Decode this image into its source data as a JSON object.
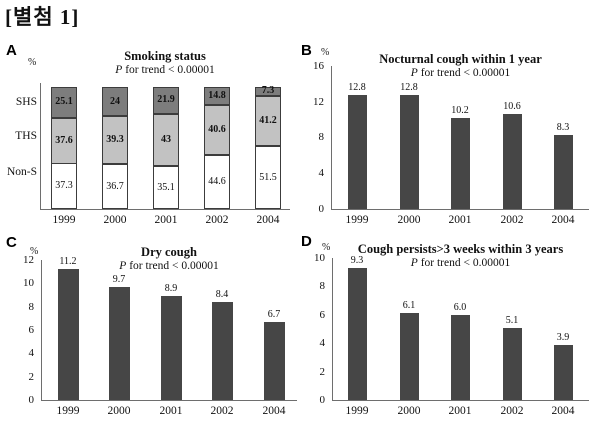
{
  "header": {
    "title": "[별첨 1]"
  },
  "panels": [
    {
      "letter": "A",
      "subtitle_p": "P",
      "subtitle_rest": " for trend < 0.00001"
    },
    {
      "letter": "B",
      "subtitle_p": "P",
      "subtitle_rest": " for trend < 0.00001"
    },
    {
      "letter": "C",
      "subtitle_p": "P",
      "subtitle_rest": " for trend < 0.00001"
    },
    {
      "letter": "D",
      "subtitle_p": "P",
      "subtitle_rest": " for trend < 0.00001"
    }
  ],
  "chart_data": [
    {
      "type": "bar",
      "stacked": true,
      "panel": "A",
      "title": "Smoking status",
      "subtitle": "P for trend < 0.00001",
      "ylabel": "%",
      "ylim": [
        0,
        100
      ],
      "grid": false,
      "categories": [
        "1999",
        "2000",
        "2001",
        "2002",
        "2004"
      ],
      "row_labels": [
        "SHS",
        "THS",
        "Non-S"
      ],
      "series": [
        {
          "name": "Non-S",
          "color": "#ffffff",
          "values": [
            37.3,
            36.7,
            35.1,
            44.6,
            51.5
          ],
          "labels": [
            "37.3",
            "36.7",
            "35.1",
            "44.6",
            "51.5"
          ],
          "bold_labels": false
        },
        {
          "name": "THS",
          "color": "#c2c2c2",
          "values": [
            37.6,
            39.3,
            43,
            40.6,
            41.2
          ],
          "labels": [
            "37.6",
            "39.3",
            "43",
            "40.6",
            "41.2"
          ],
          "bold_labels": true
        },
        {
          "name": "SHS",
          "color": "#7d7d7d",
          "values": [
            25.1,
            24,
            21.9,
            14.8,
            7.3
          ],
          "labels": [
            "25.1",
            "24",
            "21.9",
            "14.8",
            "7.3"
          ],
          "bold_labels": true
        }
      ],
      "border_color": "#3c3c3c"
    },
    {
      "type": "bar",
      "panel": "B",
      "title": "Nocturnal cough within 1 year",
      "subtitle": "P for trend < 0.00001",
      "ylabel": "%",
      "ylim": [
        0,
        16
      ],
      "yticks": [
        0,
        4,
        8,
        12,
        16
      ],
      "grid": false,
      "categories": [
        "1999",
        "2000",
        "2001",
        "2002",
        "2004"
      ],
      "values": [
        12.8,
        12.8,
        10.2,
        10.6,
        8.3
      ],
      "value_labels": [
        "12.8",
        "12.8",
        "10.2",
        "10.6",
        "8.3"
      ],
      "bar_color": "#464646"
    },
    {
      "type": "bar",
      "panel": "C",
      "title": "Dry cough",
      "subtitle": "P for trend < 0.00001",
      "ylabel": "%",
      "ylim": [
        0,
        12
      ],
      "yticks": [
        0,
        2,
        4,
        6,
        8,
        10,
        12
      ],
      "grid": false,
      "categories": [
        "1999",
        "2000",
        "2001",
        "2002",
        "2004"
      ],
      "values": [
        11.2,
        9.7,
        8.9,
        8.4,
        6.7
      ],
      "value_labels": [
        "11.2",
        "9.7",
        "8.9",
        "8.4",
        "6.7"
      ],
      "bar_color": "#464646"
    },
    {
      "type": "bar",
      "panel": "D",
      "title": "Cough persists>3 weeks within 3 years",
      "subtitle": "P for trend < 0.00001",
      "ylabel": "%",
      "ylim": [
        0,
        10
      ],
      "yticks": [
        0,
        2,
        4,
        6,
        8,
        10
      ],
      "grid": false,
      "categories": [
        "1999",
        "2000",
        "2001",
        "2002",
        "2004"
      ],
      "values": [
        9.3,
        6.1,
        6.0,
        5.1,
        3.9
      ],
      "value_labels": [
        "9.3",
        "6.1",
        "6.0",
        "5.1",
        "3.9"
      ],
      "bar_color": "#464646"
    }
  ]
}
